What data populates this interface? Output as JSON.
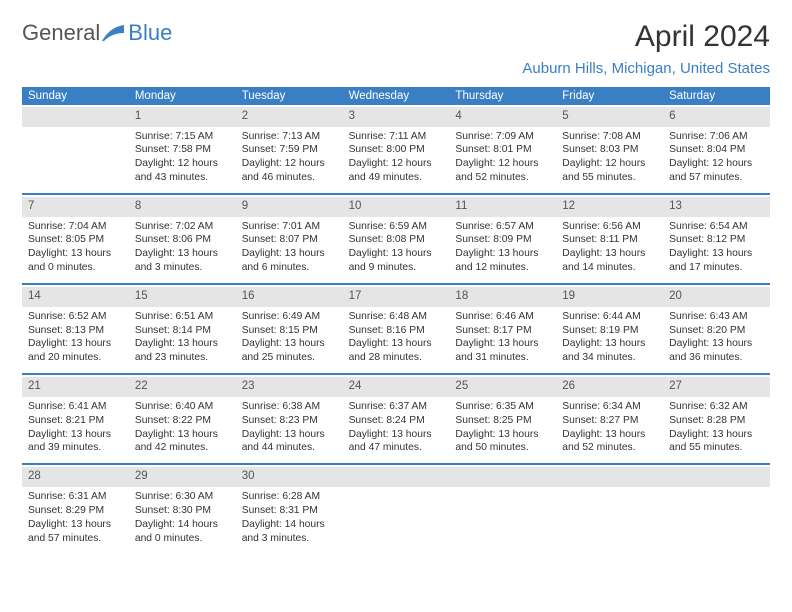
{
  "logo": {
    "text1": "General",
    "text2": "Blue",
    "swoosh_color": "#3a7fc4"
  },
  "title": "April 2024",
  "location": "Auburn Hills, Michigan, United States",
  "colors": {
    "header_bg": "#3a7fc4",
    "header_text": "#ffffff",
    "date_bg": "#e5e5e5",
    "rule": "#3a7fc4",
    "body_text": "#333333"
  },
  "day_names": [
    "Sunday",
    "Monday",
    "Tuesday",
    "Wednesday",
    "Thursday",
    "Friday",
    "Saturday"
  ],
  "weeks": [
    [
      {
        "date": "",
        "sunrise": "",
        "sunset": "",
        "daylight": ""
      },
      {
        "date": "1",
        "sunrise": "Sunrise: 7:15 AM",
        "sunset": "Sunset: 7:58 PM",
        "daylight": "Daylight: 12 hours and 43 minutes."
      },
      {
        "date": "2",
        "sunrise": "Sunrise: 7:13 AM",
        "sunset": "Sunset: 7:59 PM",
        "daylight": "Daylight: 12 hours and 46 minutes."
      },
      {
        "date": "3",
        "sunrise": "Sunrise: 7:11 AM",
        "sunset": "Sunset: 8:00 PM",
        "daylight": "Daylight: 12 hours and 49 minutes."
      },
      {
        "date": "4",
        "sunrise": "Sunrise: 7:09 AM",
        "sunset": "Sunset: 8:01 PM",
        "daylight": "Daylight: 12 hours and 52 minutes."
      },
      {
        "date": "5",
        "sunrise": "Sunrise: 7:08 AM",
        "sunset": "Sunset: 8:03 PM",
        "daylight": "Daylight: 12 hours and 55 minutes."
      },
      {
        "date": "6",
        "sunrise": "Sunrise: 7:06 AM",
        "sunset": "Sunset: 8:04 PM",
        "daylight": "Daylight: 12 hours and 57 minutes."
      }
    ],
    [
      {
        "date": "7",
        "sunrise": "Sunrise: 7:04 AM",
        "sunset": "Sunset: 8:05 PM",
        "daylight": "Daylight: 13 hours and 0 minutes."
      },
      {
        "date": "8",
        "sunrise": "Sunrise: 7:02 AM",
        "sunset": "Sunset: 8:06 PM",
        "daylight": "Daylight: 13 hours and 3 minutes."
      },
      {
        "date": "9",
        "sunrise": "Sunrise: 7:01 AM",
        "sunset": "Sunset: 8:07 PM",
        "daylight": "Daylight: 13 hours and 6 minutes."
      },
      {
        "date": "10",
        "sunrise": "Sunrise: 6:59 AM",
        "sunset": "Sunset: 8:08 PM",
        "daylight": "Daylight: 13 hours and 9 minutes."
      },
      {
        "date": "11",
        "sunrise": "Sunrise: 6:57 AM",
        "sunset": "Sunset: 8:09 PM",
        "daylight": "Daylight: 13 hours and 12 minutes."
      },
      {
        "date": "12",
        "sunrise": "Sunrise: 6:56 AM",
        "sunset": "Sunset: 8:11 PM",
        "daylight": "Daylight: 13 hours and 14 minutes."
      },
      {
        "date": "13",
        "sunrise": "Sunrise: 6:54 AM",
        "sunset": "Sunset: 8:12 PM",
        "daylight": "Daylight: 13 hours and 17 minutes."
      }
    ],
    [
      {
        "date": "14",
        "sunrise": "Sunrise: 6:52 AM",
        "sunset": "Sunset: 8:13 PM",
        "daylight": "Daylight: 13 hours and 20 minutes."
      },
      {
        "date": "15",
        "sunrise": "Sunrise: 6:51 AM",
        "sunset": "Sunset: 8:14 PM",
        "daylight": "Daylight: 13 hours and 23 minutes."
      },
      {
        "date": "16",
        "sunrise": "Sunrise: 6:49 AM",
        "sunset": "Sunset: 8:15 PM",
        "daylight": "Daylight: 13 hours and 25 minutes."
      },
      {
        "date": "17",
        "sunrise": "Sunrise: 6:48 AM",
        "sunset": "Sunset: 8:16 PM",
        "daylight": "Daylight: 13 hours and 28 minutes."
      },
      {
        "date": "18",
        "sunrise": "Sunrise: 6:46 AM",
        "sunset": "Sunset: 8:17 PM",
        "daylight": "Daylight: 13 hours and 31 minutes."
      },
      {
        "date": "19",
        "sunrise": "Sunrise: 6:44 AM",
        "sunset": "Sunset: 8:19 PM",
        "daylight": "Daylight: 13 hours and 34 minutes."
      },
      {
        "date": "20",
        "sunrise": "Sunrise: 6:43 AM",
        "sunset": "Sunset: 8:20 PM",
        "daylight": "Daylight: 13 hours and 36 minutes."
      }
    ],
    [
      {
        "date": "21",
        "sunrise": "Sunrise: 6:41 AM",
        "sunset": "Sunset: 8:21 PM",
        "daylight": "Daylight: 13 hours and 39 minutes."
      },
      {
        "date": "22",
        "sunrise": "Sunrise: 6:40 AM",
        "sunset": "Sunset: 8:22 PM",
        "daylight": "Daylight: 13 hours and 42 minutes."
      },
      {
        "date": "23",
        "sunrise": "Sunrise: 6:38 AM",
        "sunset": "Sunset: 8:23 PM",
        "daylight": "Daylight: 13 hours and 44 minutes."
      },
      {
        "date": "24",
        "sunrise": "Sunrise: 6:37 AM",
        "sunset": "Sunset: 8:24 PM",
        "daylight": "Daylight: 13 hours and 47 minutes."
      },
      {
        "date": "25",
        "sunrise": "Sunrise: 6:35 AM",
        "sunset": "Sunset: 8:25 PM",
        "daylight": "Daylight: 13 hours and 50 minutes."
      },
      {
        "date": "26",
        "sunrise": "Sunrise: 6:34 AM",
        "sunset": "Sunset: 8:27 PM",
        "daylight": "Daylight: 13 hours and 52 minutes."
      },
      {
        "date": "27",
        "sunrise": "Sunrise: 6:32 AM",
        "sunset": "Sunset: 8:28 PM",
        "daylight": "Daylight: 13 hours and 55 minutes."
      }
    ],
    [
      {
        "date": "28",
        "sunrise": "Sunrise: 6:31 AM",
        "sunset": "Sunset: 8:29 PM",
        "daylight": "Daylight: 13 hours and 57 minutes."
      },
      {
        "date": "29",
        "sunrise": "Sunrise: 6:30 AM",
        "sunset": "Sunset: 8:30 PM",
        "daylight": "Daylight: 14 hours and 0 minutes."
      },
      {
        "date": "30",
        "sunrise": "Sunrise: 6:28 AM",
        "sunset": "Sunset: 8:31 PM",
        "daylight": "Daylight: 14 hours and 3 minutes."
      },
      {
        "date": "",
        "sunrise": "",
        "sunset": "",
        "daylight": ""
      },
      {
        "date": "",
        "sunrise": "",
        "sunset": "",
        "daylight": ""
      },
      {
        "date": "",
        "sunrise": "",
        "sunset": "",
        "daylight": ""
      },
      {
        "date": "",
        "sunrise": "",
        "sunset": "",
        "daylight": ""
      }
    ]
  ]
}
